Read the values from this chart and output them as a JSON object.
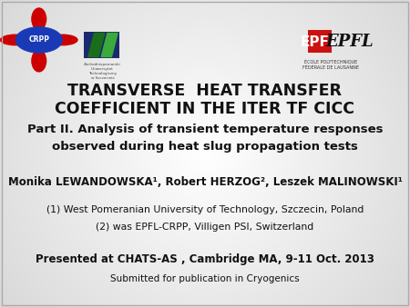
{
  "bg_color": "#e8e8e8",
  "title_line1": "TRANSVERSE  HEAT TRANSFER",
  "title_line2": "COEFFICIENT IN THE ITER TF CICC",
  "subtitle_line1": "Part II. Analysis of transient temperature responses",
  "subtitle_line2": "observed during heat slug propagation tests",
  "authors": "Monika LEWANDOWSKA¹, Robert HERZOG², Leszek MALINOWSKI¹",
  "affil1": "(1) West Pomeranian University of Technology, Szczecin, Poland",
  "affil2": "(2) was EPFL-CRPP, Villigen PSI, Switzerland",
  "conference": "Presented at CHATS-AS , Cambridge MA, 9-11 Oct. 2013",
  "journal": "Submitted for publication in Cryogenics",
  "title_fontsize": 12.5,
  "subtitle_fontsize": 9.5,
  "authors_fontsize": 8.5,
  "affil_fontsize": 7.8,
  "conf_fontsize": 8.5,
  "journal_fontsize": 7.5,
  "text_color": "#111111",
  "border_color": "#aaaaaa",
  "crpp_blue": "#1a3ab5",
  "crpp_red": "#cc0000",
  "epfl_red": "#cc1111",
  "zut_green_dark": "#1a5e1a",
  "zut_green_mid": "#2a7a2a",
  "zut_blue_dark": "#1a2a6e"
}
